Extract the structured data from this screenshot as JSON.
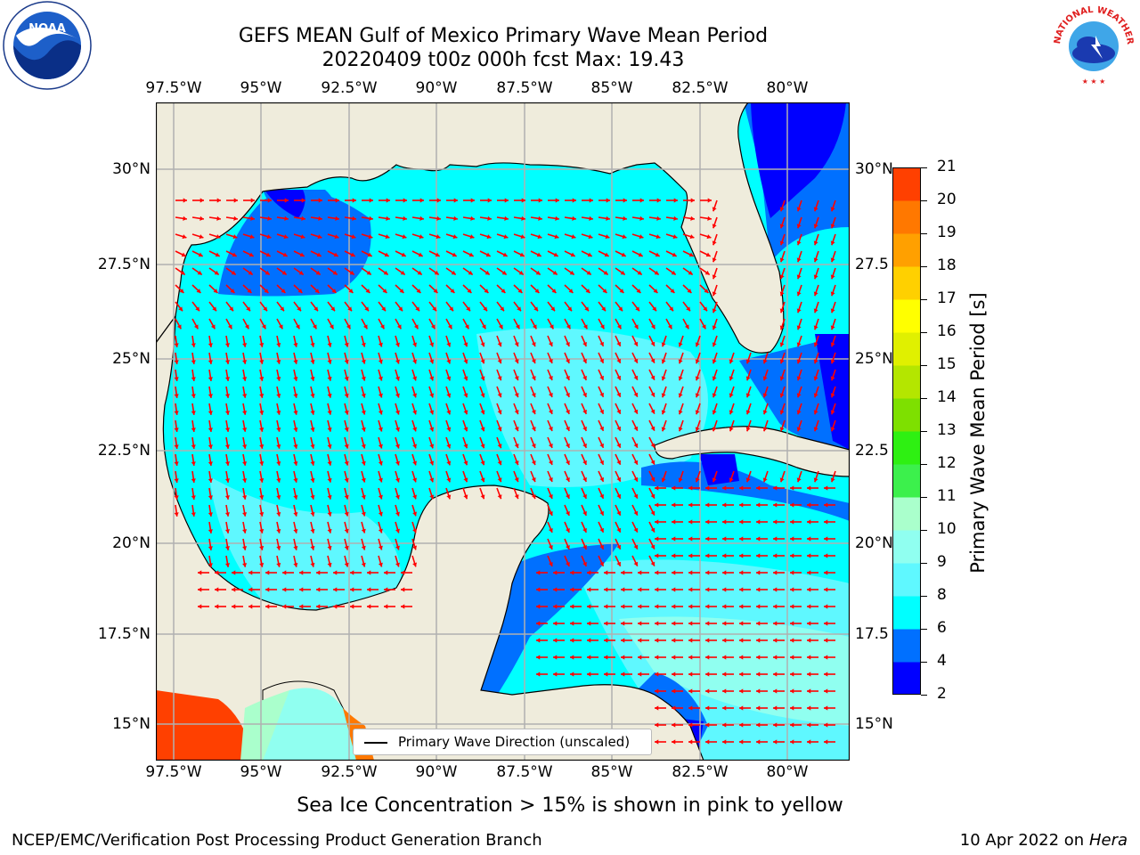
{
  "title": {
    "line1": "GEFS MEAN Gulf of Mexico Primary Wave Mean Period",
    "line2": "20220409 t00z 000h fcst   Max: 19.43"
  },
  "axes": {
    "lon_labels": [
      "97.5°W",
      "95°W",
      "92.5°W",
      "90°W",
      "87.5°W",
      "85°W",
      "82.5°W",
      "80°W"
    ],
    "lat_labels_left": [
      "30°N",
      "27.5°N",
      "25°N",
      "22.5°N",
      "20°N",
      "17.5°N",
      "15°N"
    ],
    "lat_labels_right": [
      "30°N",
      "27.5",
      "25°N",
      "22.5",
      "20°N",
      "17.5",
      "15°N"
    ]
  },
  "legend": {
    "label": "Primary Wave Direction (unscaled)"
  },
  "colorbar": {
    "label": "Primary Wave Mean Period [s]",
    "ticks": [
      "21",
      "20",
      "19",
      "18",
      "17",
      "16",
      "15",
      "14",
      "13",
      "12",
      "11",
      "10",
      "9",
      "8",
      "6",
      "4",
      "2"
    ],
    "colors": [
      "#0000ff",
      "#0070ff",
      "#00ffff",
      "#5ff8ff",
      "#90fff0",
      "#aaffcc",
      "#3cf04c",
      "#2ef012",
      "#7ee000",
      "#b4e600",
      "#e0f000",
      "#ffff00",
      "#ffd000",
      "#ffa000",
      "#ff7800",
      "#ff4000"
    ]
  },
  "chart_data": {
    "type": "heatmap",
    "title": "GEFS MEAN Gulf of Mexico Primary Wave Mean Period",
    "lon_range": [
      -98.0,
      -78.3
    ],
    "lat_range": [
      14.0,
      31.7
    ],
    "value_range": [
      2,
      21
    ],
    "max_value": 19.43,
    "grid": true
  },
  "sea_ice_note": "Sea Ice Concentration > 15% is shown in pink to yellow",
  "footer": {
    "left": "NCEP/EMC/Verification Post Processing Product Generation Branch",
    "right_date": "10 Apr 2022 on ",
    "right_host": "Hera"
  },
  "logos": {
    "noaa": "NOAA",
    "nws": "NATIONAL WEATHER SERVICE"
  },
  "colors": {
    "land": "#efecdc",
    "sea": "#00ffff",
    "arrow": "#ff0000"
  }
}
